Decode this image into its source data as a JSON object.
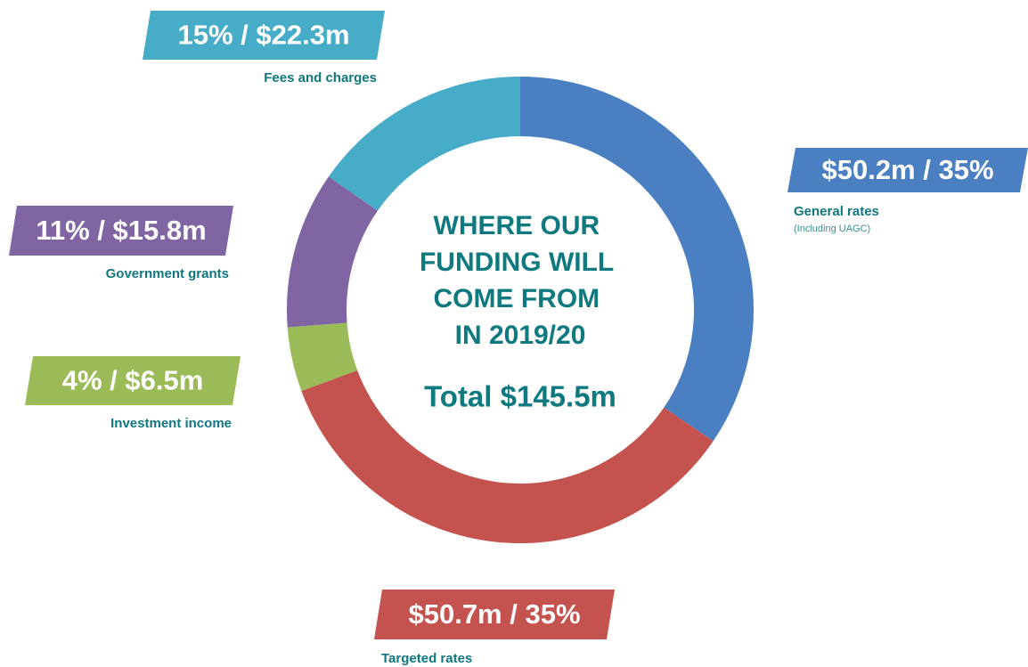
{
  "chart_data": {
    "type": "donut",
    "title": "WHERE OUR FUNDING WILL COME FROM IN 2019/20",
    "subtitle": "Total $145.5m",
    "categories": [
      "General rates",
      "Targeted rates",
      "Investment income",
      "Government grants",
      "Fees and charges"
    ],
    "values": [
      50.2,
      50.7,
      6.5,
      15.8,
      22.3
    ],
    "value_labels": [
      "$50.2m / 35%",
      "$50.7m / 35%",
      "4% / $6.5m",
      "11% / $15.8m",
      "15% / $22.3m"
    ],
    "colors": [
      "#4a80c2",
      "#c4524e",
      "#9bbb59",
      "#8065a3",
      "#47acc8"
    ],
    "note": "(Including UAGC)"
  }
}
